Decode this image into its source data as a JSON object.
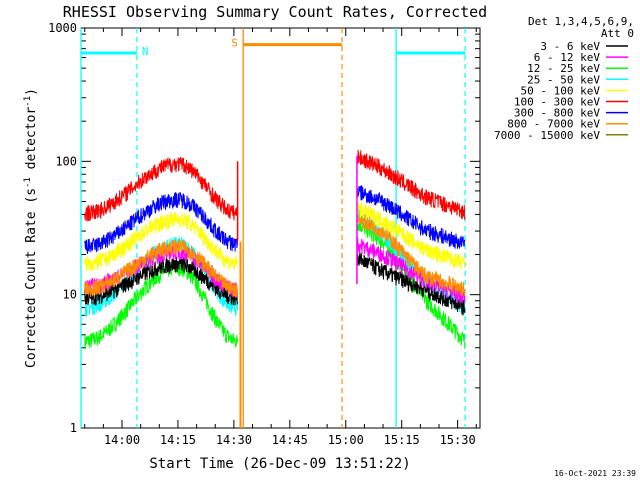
{
  "chart_data": {
    "type": "line",
    "title": "RHESSI Observing Summary Count Rates, Corrected",
    "xlabel": "Start Time (26-Dec-09 13:51:22)",
    "ylabel": "Corrected Count Rate (s",
    "ylabel_sup1": "-1",
    "ylabel_mid": " detector",
    "ylabel_sup2": "-1",
    "ylabel_end": ")",
    "y_scale": "log",
    "ylim": [
      1,
      1000
    ],
    "xlim_minutes": [
      -11,
      96
    ],
    "x_ticks": [
      {
        "m": 0,
        "label": "14:00"
      },
      {
        "m": 15,
        "label": "14:15"
      },
      {
        "m": 30,
        "label": "14:30"
      },
      {
        "m": 45,
        "label": "14:45"
      },
      {
        "m": 60,
        "label": "15:00"
      },
      {
        "m": 75,
        "label": "15:15"
      },
      {
        "m": 90,
        "label": "15:30"
      }
    ],
    "y_ticks": [
      {
        "v": 1,
        "label": "1"
      },
      {
        "v": 10,
        "label": "10"
      },
      {
        "v": 100,
        "label": "100"
      },
      {
        "v": 1000,
        "label": "1000"
      }
    ],
    "legend_header": [
      "Det 1,3,4,5,6,9,",
      "Att 0"
    ],
    "series": [
      {
        "name": "3 - 6 keV",
        "color": "#000000",
        "seg1": [
          [
            -10,
            9.5
          ],
          [
            15,
            17
          ],
          [
            31,
            9.5
          ]
        ],
        "seg2": [
          [
            63,
            19
          ],
          [
            70,
            15
          ],
          [
            81,
            11
          ],
          [
            92,
            8
          ]
        ]
      },
      {
        "name": "6 - 12 keV",
        "color": "#ff00ff",
        "seg1": [
          [
            -10,
            11.5
          ],
          [
            15,
            21
          ],
          [
            31,
            11
          ]
        ],
        "seg2": [
          [
            63,
            24
          ],
          [
            70,
            20
          ],
          [
            81,
            13
          ],
          [
            92,
            9.5
          ]
        ]
      },
      {
        "name": "12 - 25 keV",
        "color": "#00ff00",
        "seg1": [
          [
            -10,
            4.5
          ],
          [
            15,
            16
          ],
          [
            31,
            4.5
          ]
        ],
        "seg2": [
          [
            63,
            35
          ],
          [
            70,
            25
          ],
          [
            81,
            9.5
          ],
          [
            92,
            4.5
          ]
        ]
      },
      {
        "name": "25 - 50 keV",
        "color": "#00ffff",
        "seg1": [
          [
            -10,
            8
          ],
          [
            15,
            24
          ],
          [
            31,
            8
          ]
        ],
        "seg2": [
          [
            63,
            42
          ],
          [
            70,
            28
          ],
          [
            81,
            13
          ],
          [
            92,
            8
          ]
        ]
      },
      {
        "name": "50 - 100 keV",
        "color": "#ffff00",
        "seg1": [
          [
            -10,
            17
          ],
          [
            15,
            37
          ],
          [
            31,
            17
          ]
        ],
        "seg2": [
          [
            63,
            45
          ],
          [
            70,
            36
          ],
          [
            81,
            22
          ],
          [
            92,
            17
          ]
        ]
      },
      {
        "name": "100 - 300 keV",
        "color": "#ff0000",
        "seg1": [
          [
            -10,
            41
          ],
          [
            15,
            96
          ],
          [
            31,
            41
          ]
        ],
        "seg2": [
          [
            63,
            110
          ],
          [
            70,
            88
          ],
          [
            81,
            55
          ],
          [
            92,
            42
          ]
        ]
      },
      {
        "name": "300 - 800 keV",
        "color": "#0000ff",
        "seg1": [
          [
            -10,
            23
          ],
          [
            15,
            52
          ],
          [
            31,
            24
          ]
        ],
        "seg2": [
          [
            63,
            60
          ],
          [
            70,
            50
          ],
          [
            81,
            31
          ],
          [
            92,
            24
          ]
        ]
      },
      {
        "name": "800 - 7000 keV",
        "color": "#ff8c00",
        "seg1": [
          [
            -10,
            11
          ],
          [
            15,
            23
          ],
          [
            31,
            11
          ]
        ],
        "seg2": [
          [
            63,
            38
          ],
          [
            70,
            30
          ],
          [
            81,
            14
          ],
          [
            92,
            11
          ]
        ]
      },
      {
        "name": "7000 - 15000 keV",
        "color": "#808000",
        "seg1": [],
        "seg2": []
      }
    ],
    "markers": [
      {
        "label": "N",
        "color": "#00ffff",
        "start": -11,
        "end": 4,
        "level": 650
      },
      {
        "label": "S",
        "color": "#ff8c00",
        "start": 32.5,
        "end": 59,
        "level": 750
      },
      {
        "label": "",
        "color": "#00ffff",
        "start": 73.5,
        "end": 92,
        "level": 650
      }
    ],
    "grid": false
  },
  "timestamp": "16-Oct-2021 23:39"
}
